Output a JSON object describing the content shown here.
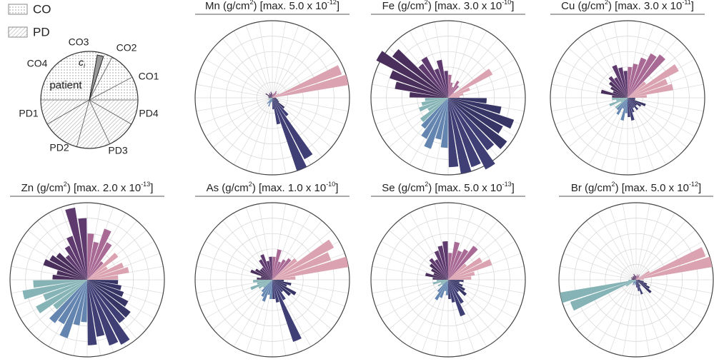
{
  "chart_data": [
    {
      "type": "schematic",
      "legend": [
        "CO",
        "PD"
      ],
      "sectors": [
        "CO1",
        "CO2",
        "CO3",
        "CO4",
        "PD1",
        "PD2",
        "PD3",
        "PD4"
      ],
      "center_label": "patient",
      "sample_label": [
        "c",
        "i"
      ]
    },
    {
      "type": "polar-bar",
      "title": [
        "Mn (g/cm",
        "2",
        ") [max. 5.0 x 10",
        "-12",
        "]"
      ],
      "rlim": [
        0,
        1
      ],
      "rticks": [
        0.2,
        0.4,
        0.6,
        0.8,
        1
      ],
      "grid": true,
      "series": [
        {
          "color": "#dba3b2",
          "values": [
            0.05,
            1.0,
            0.95,
            0.1,
            0.06
          ]
        },
        {
          "color": "#a86a94",
          "values": [
            0.08,
            0.1,
            0.06,
            0.05,
            0.04
          ]
        },
        {
          "color": "#5e3a6e",
          "values": [
            0.06,
            0.08,
            0.05,
            0.07,
            0.06
          ]
        },
        {
          "color": "#4a2f5c",
          "values": [
            0.05,
            0.1,
            0.06,
            0.04,
            0.05
          ]
        },
        {
          "color": "#86b4b6",
          "values": [
            0.05,
            0.04,
            0.06,
            0.03,
            0.05
          ]
        },
        {
          "color": "#6385b0",
          "values": [
            0.1,
            0.08,
            0.12,
            0.06,
            0.05
          ]
        },
        {
          "color": "#3f3f75",
          "values": [
            0.15,
            0.35,
            1.0,
            0.9,
            0.3
          ]
        },
        {
          "color": "#373466",
          "values": [
            0.2,
            0.1,
            0.08,
            0.06,
            0.05
          ]
        }
      ]
    },
    {
      "type": "polar-bar",
      "title": [
        "Fe (g/cm",
        "2",
        ") [max. 3.0 x 10",
        "-10",
        "]"
      ],
      "rlim": [
        0,
        1
      ],
      "rticks": [
        0.2,
        0.4,
        0.6,
        0.8,
        1
      ],
      "grid": true,
      "series": [
        {
          "color": "#dba3b2",
          "values": [
            0.15,
            0.2,
            0.3,
            0.65,
            0.1
          ]
        },
        {
          "color": "#a86a94",
          "values": [
            0.2,
            0.25,
            0.15,
            0.2,
            0.3
          ]
        },
        {
          "color": "#5e3a6e",
          "values": [
            0.35,
            0.5,
            0.4,
            0.6,
            0.55
          ]
        },
        {
          "color": "#4a2f5c",
          "values": [
            0.9,
            1.05,
            0.8,
            0.7,
            0.5
          ]
        },
        {
          "color": "#86b4b6",
          "values": [
            0.3,
            0.35,
            0.4,
            0.3,
            0.45
          ]
        },
        {
          "color": "#6385b0",
          "values": [
            0.5,
            0.6,
            0.7,
            0.55,
            0.65
          ]
        },
        {
          "color": "#3f3f75",
          "values": [
            0.9,
            1.0,
            0.95,
            1.05,
            0.85
          ]
        },
        {
          "color": "#373466",
          "values": [
            0.95,
            0.8,
            0.9,
            0.7,
            0.5
          ]
        }
      ]
    },
    {
      "type": "polar-bar",
      "title": [
        "Cu (g/cm",
        "2",
        ") [max. 3.0 x 10",
        "-11",
        "]"
      ],
      "rlim": [
        0,
        1
      ],
      "rticks": [
        0.2,
        0.4,
        0.6,
        0.8,
        1
      ],
      "grid": true,
      "series": [
        {
          "color": "#dba3b2",
          "values": [
            0.25,
            0.6,
            0.55,
            0.75,
            0.3
          ]
        },
        {
          "color": "#a86a94",
          "values": [
            0.7,
            0.65,
            0.55,
            0.45,
            0.4
          ]
        },
        {
          "color": "#5e3a6e",
          "values": [
            0.35,
            0.4,
            0.45,
            0.3,
            0.35
          ]
        },
        {
          "color": "#4a2f5c",
          "values": [
            0.3,
            0.25,
            0.2,
            0.35,
            0.2
          ]
        },
        {
          "color": "#86b4b6",
          "values": [
            0.2,
            0.15,
            0.25,
            0.1,
            0.2
          ]
        },
        {
          "color": "#6385b0",
          "values": [
            0.2,
            0.25,
            0.15,
            0.3,
            0.2
          ]
        },
        {
          "color": "#3f3f75",
          "values": [
            0.25,
            0.3,
            0.2,
            0.15,
            0.2
          ]
        },
        {
          "color": "#373466",
          "values": [
            0.15,
            0.2,
            0.25,
            0.1,
            0.1
          ]
        }
      ]
    },
    {
      "type": "polar-bar",
      "title": [
        "Zn (g/cm",
        "2",
        ") [max. 2.0 x 10",
        "-13",
        "]"
      ],
      "rlim": [
        0,
        1
      ],
      "rticks": [
        0.2,
        0.4,
        0.6,
        0.8,
        1
      ],
      "grid": true,
      "series": [
        {
          "color": "#dba3b2",
          "values": [
            0.4,
            0.55,
            0.5,
            0.3,
            0.5
          ]
        },
        {
          "color": "#a86a94",
          "values": [
            0.3,
            0.55,
            0.7,
            0.5,
            0.6
          ]
        },
        {
          "color": "#5e3a6e",
          "values": [
            0.8,
            0.95,
            0.6,
            0.5,
            0.4
          ]
        },
        {
          "color": "#4a2f5c",
          "values": [
            0.5,
            0.55,
            0.6,
            0.4,
            0.45
          ]
        },
        {
          "color": "#86b4b6",
          "values": [
            0.7,
            0.85,
            0.6,
            0.75,
            0.55
          ]
        },
        {
          "color": "#6385b0",
          "values": [
            0.7,
            0.65,
            0.8,
            0.6,
            0.55
          ]
        },
        {
          "color": "#3f3f75",
          "values": [
            0.85,
            0.75,
            0.9,
            0.95,
            0.7
          ]
        },
        {
          "color": "#373466",
          "values": [
            0.7,
            0.6,
            0.5,
            0.45,
            0.4
          ]
        }
      ]
    },
    {
      "type": "polar-bar",
      "title": [
        "As (g/cm",
        "2",
        ") [max. 1.0 x 10",
        "-10",
        "]"
      ],
      "rlim": [
        0,
        1
      ],
      "rticks": [
        0.2,
        0.4,
        0.6,
        0.8,
        1
      ],
      "grid": true,
      "series": [
        {
          "color": "#dba3b2",
          "values": [
            0.3,
            1.0,
            0.8,
            0.9,
            0.4
          ]
        },
        {
          "color": "#a86a94",
          "values": [
            0.35,
            0.3,
            0.25,
            0.4,
            0.3
          ]
        },
        {
          "color": "#5e3a6e",
          "values": [
            0.3,
            0.25,
            0.35,
            0.3,
            0.2
          ]
        },
        {
          "color": "#4a2f5c",
          "values": [
            0.2,
            0.25,
            0.3,
            0.15,
            0.2
          ]
        },
        {
          "color": "#86b4b6",
          "values": [
            0.25,
            0.2,
            0.3,
            0.2,
            0.15
          ]
        },
        {
          "color": "#6385b0",
          "values": [
            0.2,
            0.25,
            0.3,
            0.2,
            0.25
          ]
        },
        {
          "color": "#3f3f75",
          "values": [
            0.25,
            0.3,
            0.85,
            0.3,
            0.2
          ]
        },
        {
          "color": "#373466",
          "values": [
            0.3,
            0.35,
            0.2,
            0.25,
            0.15
          ]
        }
      ]
    },
    {
      "type": "polar-bar",
      "title": [
        "Se (g/cm",
        "2",
        ") [max. 5.0 x 10",
        "-13",
        "]"
      ],
      "rlim": [
        0,
        1
      ],
      "rticks": [
        0.2,
        0.4,
        0.6,
        0.8,
        1
      ],
      "grid": true,
      "series": [
        {
          "color": "#dba3b2",
          "values": [
            0.3,
            0.35,
            0.6,
            0.5,
            0.3
          ]
        },
        {
          "color": "#a86a94",
          "values": [
            0.55,
            0.45,
            0.4,
            0.5,
            0.35
          ]
        },
        {
          "color": "#5e3a6e",
          "values": [
            0.5,
            0.45,
            0.4,
            0.3,
            0.35
          ]
        },
        {
          "color": "#4a2f5c",
          "values": [
            0.3,
            0.25,
            0.2,
            0.3,
            0.2
          ]
        },
        {
          "color": "#86b4b6",
          "values": [
            0.15,
            0.2,
            0.1,
            0.15,
            0.1
          ]
        },
        {
          "color": "#6385b0",
          "values": [
            0.2,
            0.3,
            0.25,
            0.15,
            0.2
          ]
        },
        {
          "color": "#3f3f75",
          "values": [
            0.25,
            0.3,
            0.5,
            0.35,
            0.2
          ]
        },
        {
          "color": "#373466",
          "values": [
            0.3,
            0.25,
            0.2,
            0.15,
            0.2
          ]
        }
      ]
    },
    {
      "type": "polar-bar",
      "title": [
        "Br (g/cm",
        "2",
        ") [max. 5.0 x 10",
        "-12",
        "]"
      ],
      "rlim": [
        0,
        1
      ],
      "rticks": [
        0.2,
        0.4,
        0.6,
        0.8,
        1
      ],
      "grid": true,
      "series": [
        {
          "color": "#dba3b2",
          "values": [
            0.1,
            1.0,
            0.95,
            0.2,
            0.05
          ]
        },
        {
          "color": "#a86a94",
          "values": [
            0.06,
            0.08,
            0.05,
            0.07,
            0.05
          ]
        },
        {
          "color": "#5e3a6e",
          "values": [
            0.05,
            0.06,
            0.08,
            0.05,
            0.06
          ]
        },
        {
          "color": "#4a2f5c",
          "values": [
            0.06,
            0.05,
            0.07,
            0.05,
            0.06
          ]
        },
        {
          "color": "#86b4b6",
          "values": [
            0.1,
            1.0,
            0.9,
            0.15,
            0.05
          ]
        },
        {
          "color": "#6385b0",
          "values": [
            0.06,
            0.08,
            0.05,
            0.07,
            0.06
          ]
        },
        {
          "color": "#3f3f75",
          "values": [
            0.1,
            0.15,
            0.2,
            0.1,
            0.05
          ]
        },
        {
          "color": "#373466",
          "values": [
            0.25,
            0.2,
            0.15,
            0.1,
            0.05
          ]
        }
      ]
    }
  ]
}
